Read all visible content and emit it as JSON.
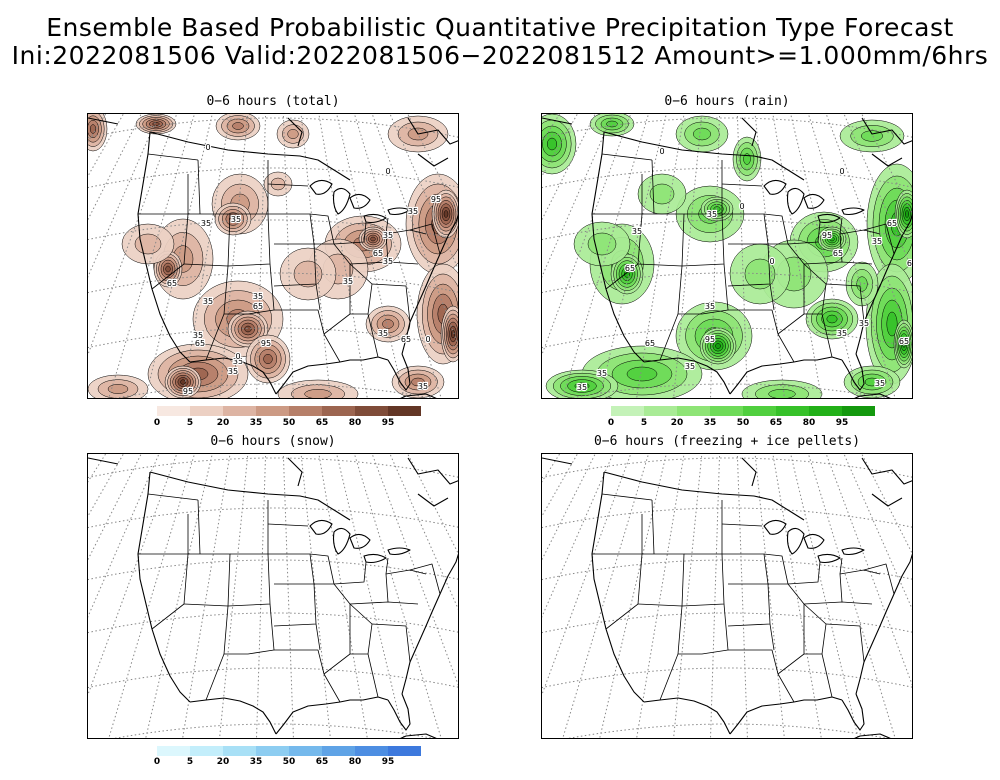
{
  "title": {
    "line1": "Ensemble Based Probabilistic Quantitative Precipitation Type Forecast",
    "line2": "Ini:2022081506 Valid:2022081506−2022081512 Amount>=1.000mm/6hrs"
  },
  "panels": [
    {
      "id": "total",
      "title": "0−6 hours (total)",
      "palette": "brown"
    },
    {
      "id": "rain",
      "title": "0−6 hours (rain)",
      "palette": "green"
    },
    {
      "id": "snow",
      "title": "0−6 hours (snow)",
      "palette": "blue"
    },
    {
      "id": "freezing",
      "title": "0−6 hours (freezing + ice pellets)",
      "palette": "none"
    }
  ],
  "colorbar": {
    "ticks": [
      "0",
      "5",
      "20",
      "35",
      "50",
      "65",
      "80",
      "95"
    ],
    "brown": [
      "#f7e8e1",
      "#ecd0c3",
      "#ddb4a3",
      "#cc9a84",
      "#b67f69",
      "#9c6550",
      "#7f4c39",
      "#633626"
    ],
    "green": [
      "#c4f2b8",
      "#a9eb96",
      "#8ee476",
      "#6edb58",
      "#50cf3e",
      "#36c129",
      "#22b018",
      "#14990e"
    ],
    "blue": [
      "#dcf7fd",
      "#c3eefb",
      "#a8e0f6",
      "#8dcdf1",
      "#75b9ec",
      "#5fa3e6",
      "#4d8ee2",
      "#3d79dd"
    ]
  },
  "contour_labels": {
    "total": [
      "35",
      "35",
      "35",
      "35",
      "65",
      "95",
      "65",
      "35",
      "35",
      "65",
      "95",
      "65",
      "35",
      "35",
      "35",
      "65",
      "35",
      "95",
      "35",
      "35",
      "35",
      "0",
      "0",
      "0",
      "0"
    ],
    "rain": [
      "35",
      "35",
      "65",
      "35",
      "35",
      "65",
      "95",
      "35",
      "35",
      "65",
      "95",
      "65",
      "35",
      "35",
      "65",
      "65",
      "35",
      "35",
      "0",
      "0",
      "0",
      "0"
    ]
  }
}
